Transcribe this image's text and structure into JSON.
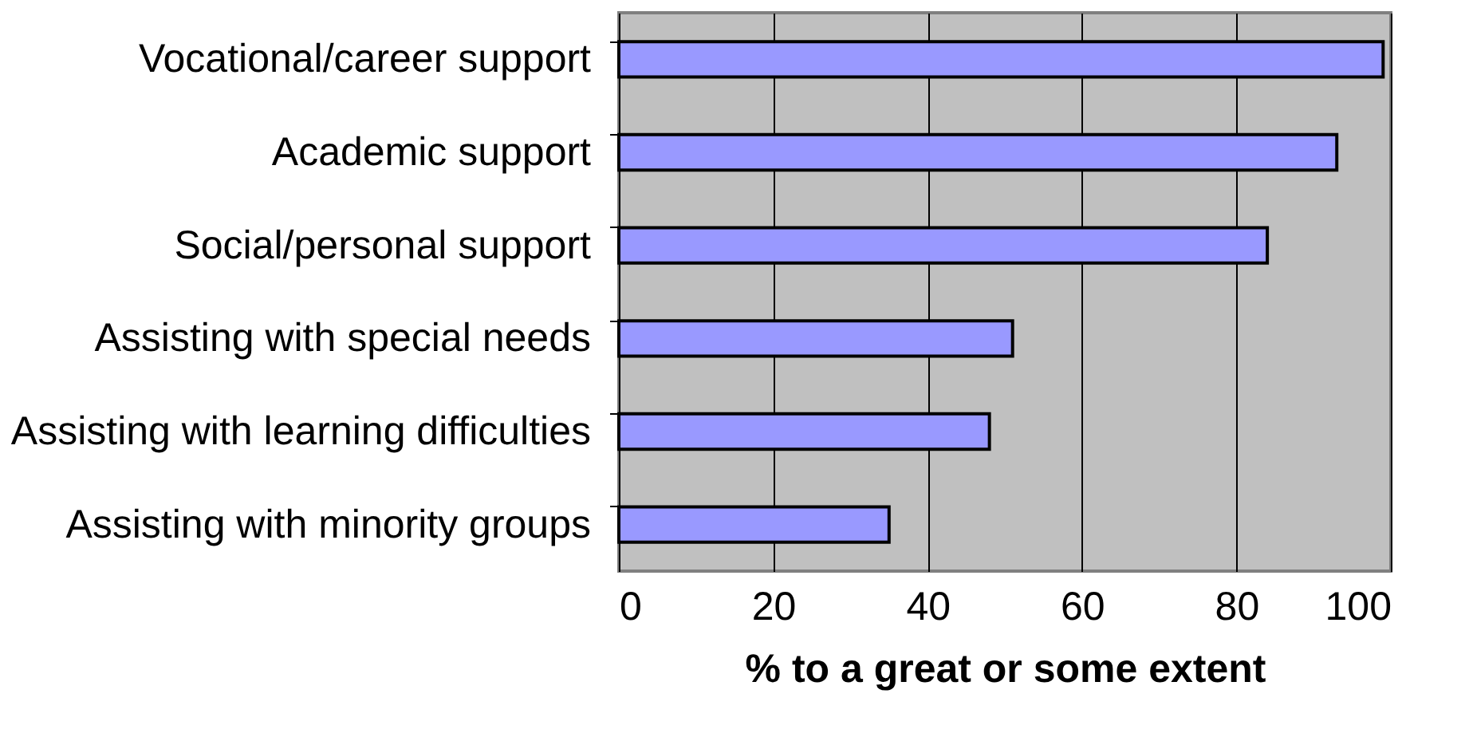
{
  "chart_data": {
    "type": "bar",
    "orientation": "horizontal",
    "xlabel": "% to a great or some extent",
    "categories": [
      "Vocational/career support",
      "Academic support",
      "Social/personal support",
      "Assisting with special needs",
      "Assisting with learning difficulties",
      "Assisting with minority groups"
    ],
    "values": [
      99,
      93,
      84,
      51,
      48,
      35
    ],
    "color": "#9999ff",
    "xlim": [
      0,
      100
    ],
    "xticks": [
      0,
      20,
      40,
      60,
      80,
      100
    ],
    "grid": "x"
  }
}
